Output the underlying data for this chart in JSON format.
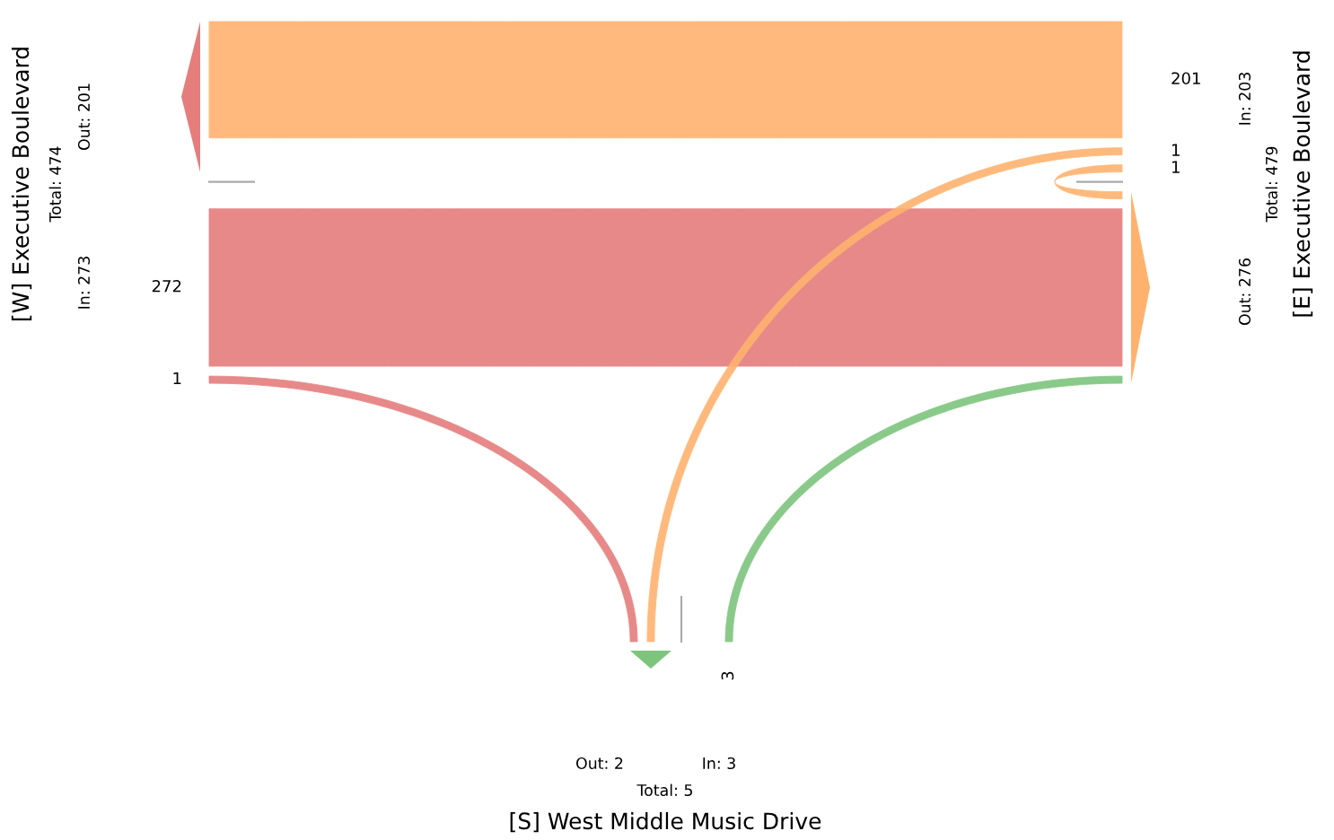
{
  "chart_data": {
    "type": "other",
    "categories": [
      "[W] Executive Boulevard",
      "[E] Executive Boulevard",
      "[S] West Middle Music Drive"
    ],
    "series": [
      {
        "colors": [
          "#e57d7d",
          "#ffb26e",
          "#7dc47d"
        ],
        "values": [
          null,
          201,
          null
        ]
      },
      {
        "colors": [
          "#e57d7d",
          "#ffb26e",
          "#7dc47d"
        ],
        "values": [
          272,
          1,
          3
        ]
      },
      {
        "colors": [
          "#e57d7d",
          "#ffb26e",
          "#7dc47d"
        ],
        "values": [
          1,
          1,
          null
        ]
      }
    ],
    "data_labels": true,
    "annotations": [
      "Total: 474",
      "In: 273",
      "Out: 201",
      "Total: 479",
      "In: 203",
      "Out: 276",
      "Total: 5",
      "In: 3",
      "Out: 2"
    ]
  }
}
